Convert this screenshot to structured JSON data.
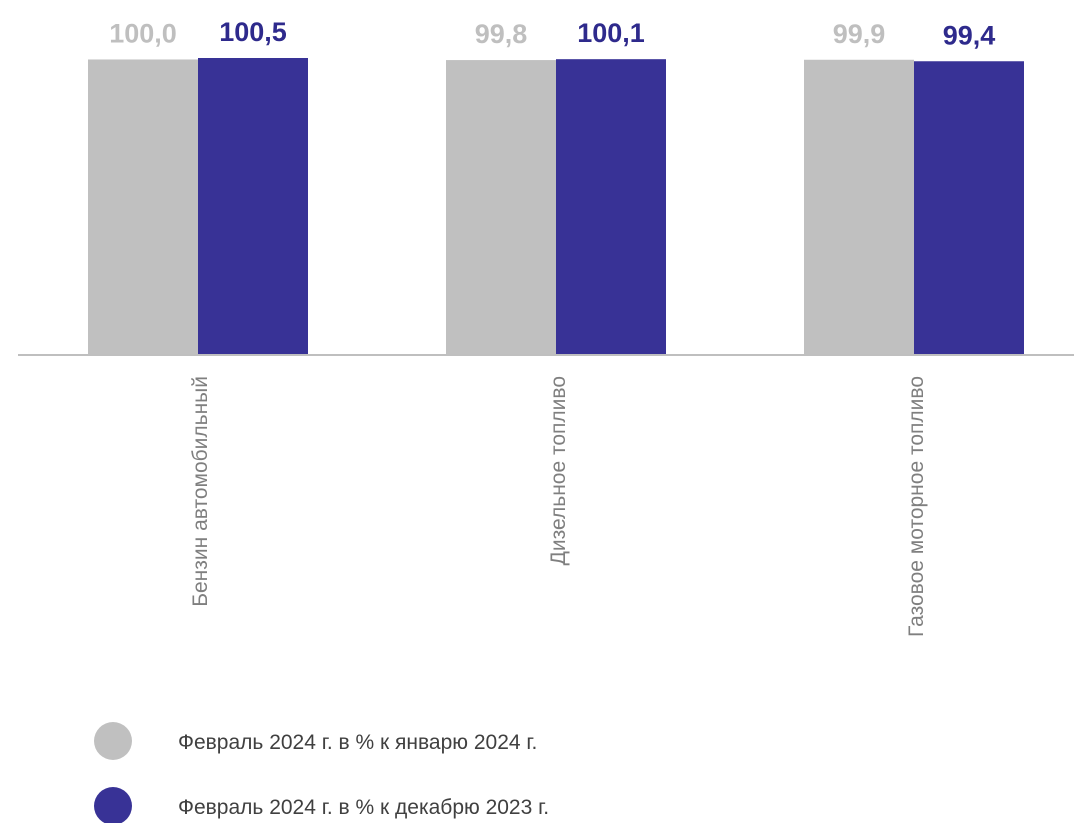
{
  "chart_data": {
    "type": "bar",
    "categories": [
      "Бензин автомобильный",
      "Дизельное топливо",
      "Газовое моторное топливо"
    ],
    "series": [
      {
        "name": "Февраль 2024 г. в % к  январю 2024 г.",
        "values": [
          100.0,
          99.8,
          99.9
        ],
        "labels": [
          "100,0",
          "99,8",
          "99,9"
        ],
        "color": "#c0c0c0",
        "label_color": "#bfbfbf"
      },
      {
        "name": "Февраль 2024 г. в % к декабрю 2023 г.",
        "values": [
          100.5,
          100.1,
          99.4
        ],
        "labels": [
          "100,5",
          "100,1",
          "99,4"
        ],
        "color": "#383296",
        "label_color": "#2e2a8c"
      }
    ],
    "legend_position": "bottom-left",
    "grid": false,
    "axis_color": "#bfbfbf",
    "category_label_color": "#7f7f7f",
    "legend_text_color": "#404040"
  }
}
